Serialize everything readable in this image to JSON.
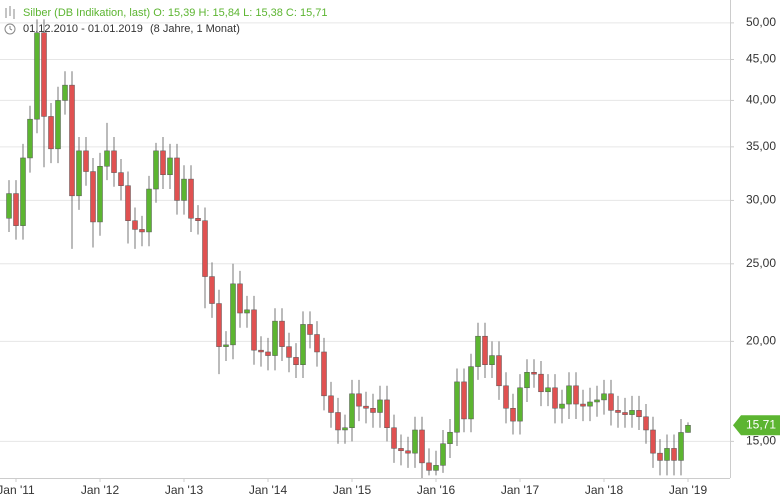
{
  "chart_data": {
    "type": "candlestick",
    "title": "Silber (DB Indikation, last)  O: 15,39  H: 15,84  L: 15,38  C: 15,71",
    "subtitle": "01.12.2010 - 01.01.2019",
    "period": "(8 Jahre, 1 Monat)",
    "last_price_label": "15,71",
    "log_y": true,
    "grid": true,
    "up_color": "#5cb531",
    "down_color": "#e05151",
    "categories": [
      null,
      "Jan '11",
      null,
      null,
      null,
      null,
      null,
      null,
      null,
      null,
      null,
      null,
      null,
      "Jan '12",
      null,
      null,
      null,
      null,
      null,
      null,
      null,
      null,
      null,
      null,
      null,
      "Jan '13",
      null,
      null,
      null,
      null,
      null,
      null,
      null,
      null,
      null,
      null,
      null,
      "Jan '14",
      null,
      null,
      null,
      null,
      null,
      null,
      null,
      null,
      null,
      null,
      null,
      "Jan '15",
      null,
      null,
      null,
      null,
      null,
      null,
      null,
      null,
      null,
      null,
      null,
      "Jan '16",
      null,
      null,
      null,
      null,
      null,
      null,
      null,
      null,
      null,
      null,
      null,
      "Jan '17",
      null,
      null,
      null,
      null,
      null,
      null,
      null,
      null,
      null,
      null,
      null,
      "Jan '18",
      null,
      null,
      null,
      null,
      null,
      null,
      null,
      null,
      null,
      null,
      null,
      "Jan '19"
    ],
    "open": [
      28.5,
      30.6,
      27.9,
      33.9,
      37.9,
      48.6,
      38.2,
      34.8,
      40.0,
      41.8,
      30.4,
      34.6,
      32.6,
      28.2,
      33.1,
      34.6,
      32.5,
      31.3,
      28.3,
      27.6,
      27.4,
      31.0,
      34.6,
      32.3,
      33.9,
      30.0,
      31.9,
      28.5,
      28.3,
      24.1,
      22.3,
      19.7,
      19.8,
      23.6,
      21.7,
      21.9,
      19.5,
      19.4,
      19.2,
      21.2,
      19.7,
      19.1,
      18.7,
      21.0,
      20.4,
      19.4,
      17.1,
      16.3,
      15.5,
      15.6,
      17.2,
      16.6,
      16.5,
      16.3,
      16.9,
      15.6,
      14.7,
      14.6,
      14.5,
      15.5,
      14.1,
      13.8,
      14.0,
      14.9,
      15.4,
      17.8,
      16.0,
      18.6,
      20.3,
      18.7,
      19.2,
      17.6,
      16.5,
      15.9,
      17.5,
      18.3,
      18.2,
      17.3,
      17.5,
      16.5,
      16.7,
      17.6,
      16.7,
      16.6,
      16.8,
      16.9,
      17.2,
      16.4,
      16.3,
      16.2,
      16.4,
      16.1,
      15.5,
      14.5,
      14.2,
      14.7,
      14.2,
      15.39
    ],
    "high": [
      31.8,
      31.8,
      35.3,
      39.4,
      50.5,
      50.5,
      39.7,
      41.6,
      43.5,
      43.5,
      36.0,
      36.0,
      33.9,
      34.4,
      37.5,
      36.0,
      33.8,
      32.6,
      29.4,
      28.7,
      32.2,
      35.4,
      36.0,
      35.3,
      35.3,
      33.2,
      33.2,
      29.6,
      29.4,
      25.1,
      23.2,
      20.6,
      25.0,
      24.5,
      22.8,
      22.8,
      20.3,
      20.2,
      22.0,
      22.0,
      20.5,
      19.9,
      21.8,
      21.8,
      21.2,
      20.2,
      17.8,
      17.0,
      16.2,
      17.9,
      17.9,
      17.3,
      17.2,
      17.6,
      17.6,
      16.2,
      15.3,
      15.2,
      16.1,
      16.1,
      14.7,
      14.6,
      15.5,
      16.0,
      18.5,
      18.5,
      19.3,
      21.1,
      21.1,
      20.0,
      20.0,
      18.3,
      17.2,
      18.2,
      19.0,
      19.0,
      18.9,
      18.2,
      18.2,
      17.4,
      18.3,
      18.3,
      17.4,
      17.5,
      17.6,
      17.9,
      17.9,
      17.1,
      17.0,
      17.1,
      17.1,
      16.7,
      16.1,
      15.1,
      15.3,
      15.3,
      16.0,
      15.84
    ],
    "low": [
      27.4,
      26.8,
      26.8,
      32.5,
      36.4,
      33.0,
      33.4,
      33.4,
      38.4,
      26.1,
      29.2,
      31.3,
      26.2,
      27.1,
      31.8,
      31.2,
      30.0,
      26.5,
      26.1,
      26.3,
      26.3,
      29.8,
      31.0,
      31.0,
      28.8,
      28.8,
      27.4,
      27.2,
      22.0,
      21.4,
      18.2,
      18.9,
      19.0,
      20.8,
      20.8,
      18.7,
      18.6,
      18.4,
      18.4,
      18.9,
      18.3,
      18.0,
      18.0,
      19.6,
      18.6,
      16.4,
      15.6,
      14.9,
      14.9,
      15.0,
      15.9,
      15.8,
      15.6,
      15.6,
      15.0,
      14.1,
      14.0,
      13.9,
      13.9,
      13.5,
      13.6,
      13.6,
      13.7,
      14.3,
      14.8,
      15.4,
      15.4,
      17.9,
      18.0,
      18.0,
      16.9,
      15.8,
      15.3,
      15.3,
      16.8,
      17.5,
      16.6,
      16.6,
      15.8,
      15.8,
      16.0,
      16.0,
      15.9,
      15.9,
      16.1,
      16.2,
      15.7,
      15.6,
      15.6,
      15.6,
      15.5,
      14.9,
      13.9,
      13.6,
      13.6,
      13.6,
      13.6,
      15.38
    ],
    "close": [
      30.6,
      27.9,
      33.9,
      37.9,
      48.6,
      38.2,
      34.8,
      40.0,
      41.8,
      30.4,
      34.6,
      32.6,
      28.2,
      33.1,
      34.6,
      32.5,
      31.3,
      28.3,
      27.6,
      27.4,
      31.0,
      34.6,
      32.3,
      33.9,
      30.0,
      31.9,
      28.5,
      28.3,
      24.1,
      22.3,
      19.7,
      19.8,
      23.6,
      21.7,
      21.9,
      19.5,
      19.4,
      19.2,
      21.2,
      19.7,
      19.1,
      18.7,
      21.0,
      20.4,
      19.4,
      17.1,
      16.3,
      15.5,
      15.6,
      17.2,
      16.6,
      16.5,
      16.3,
      16.9,
      15.6,
      14.7,
      14.6,
      14.5,
      15.5,
      14.1,
      13.8,
      14.0,
      14.9,
      15.4,
      17.8,
      16.0,
      18.6,
      20.3,
      18.7,
      19.2,
      17.6,
      16.5,
      15.9,
      17.5,
      18.3,
      18.2,
      17.3,
      17.5,
      16.5,
      16.7,
      17.6,
      16.7,
      16.6,
      16.8,
      16.9,
      17.2,
      16.4,
      16.3,
      16.2,
      16.4,
      16.1,
      15.5,
      14.5,
      14.2,
      14.7,
      14.2,
      15.39,
      15.71
    ],
    "ylim": [
      13.5,
      53.4
    ],
    "yticks": [
      {
        "value": 15,
        "label": "15,00"
      },
      {
        "value": 20,
        "label": "20,00"
      },
      {
        "value": 25,
        "label": "25,00"
      },
      {
        "value": 30,
        "label": "30,00"
      },
      {
        "value": 35,
        "label": "35,00"
      },
      {
        "value": 40,
        "label": "40,00"
      },
      {
        "value": 45,
        "label": "45,00"
      },
      {
        "value": 50,
        "label": "50,00"
      }
    ]
  }
}
